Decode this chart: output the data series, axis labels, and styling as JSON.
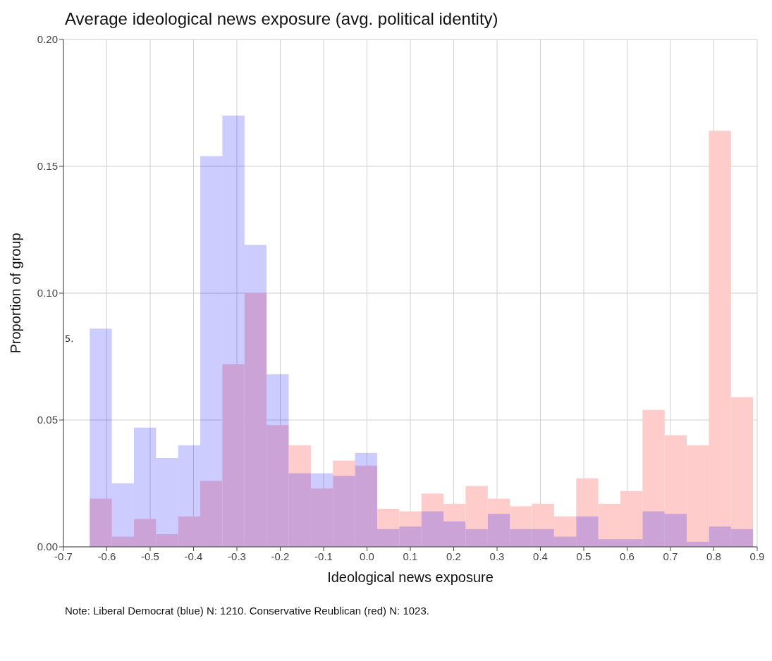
{
  "chart_data": {
    "type": "histogram",
    "title": "Average ideological news exposure (avg. political identity)",
    "xlabel": "Ideological news exposure",
    "ylabel": "Proportion of group",
    "annotations": [
      "5.",
      "Note: Liberal Democrat (blue) N: 1210. Conservative Reublican (red) N: 1023."
    ],
    "bins": [
      -0.64,
      -0.589,
      -0.538,
      -0.487,
      -0.436,
      -0.385,
      -0.334,
      -0.283,
      -0.232,
      -0.181,
      -0.13,
      -0.079,
      -0.028,
      0.023,
      0.074,
      0.125,
      0.176,
      0.227,
      0.278,
      0.329,
      0.38,
      0.431,
      0.482,
      0.533,
      0.584,
      0.635,
      0.686,
      0.737,
      0.788,
      0.839,
      0.89
    ],
    "series": [
      {
        "color": "#ccccff",
        "values": [
          0.086,
          0.025,
          0.047,
          0.035,
          0.04,
          0.154,
          0.17,
          0.119,
          0.068,
          0.029,
          0.029,
          0.028,
          0.037,
          0.007,
          0.008,
          0.014,
          0.01,
          0.007,
          0.013,
          0.007,
          0.007,
          0.004,
          0.012,
          0.003,
          0.003,
          0.014,
          0.013,
          0.002,
          0.008,
          0.007
        ]
      },
      {
        "color": "#ffcccc",
        "values": [
          0.019,
          0.004,
          0.011,
          0.005,
          0.012,
          0.026,
          0.072,
          0.1,
          0.048,
          0.04,
          0.023,
          0.034,
          0.032,
          0.015,
          0.014,
          0.021,
          0.017,
          0.024,
          0.019,
          0.016,
          0.017,
          0.012,
          0.027,
          0.017,
          0.022,
          0.054,
          0.044,
          0.04,
          0.164,
          0.059
        ]
      }
    ],
    "xlim": [
      -0.7,
      0.9
    ],
    "xticks": [
      -0.7,
      -0.6,
      -0.5,
      -0.4,
      -0.3,
      -0.2,
      -0.1,
      {
        "value": 0,
        "label": "0.0"
      },
      0.1,
      0.2,
      0.3,
      0.4,
      0.5,
      0.6,
      0.7,
      0.8,
      0.9
    ],
    "ylim": [
      0,
      0.2
    ],
    "yticks": [
      {
        "value": 0,
        "label": "0.00"
      },
      {
        "value": 0.05,
        "label": "0.05"
      },
      {
        "value": 0.1,
        "label": "0.10"
      },
      {
        "value": 0.15,
        "label": "0.15"
      },
      {
        "value": 0.2,
        "label": "0.20"
      }
    ],
    "grid": true,
    "legend": false
  }
}
